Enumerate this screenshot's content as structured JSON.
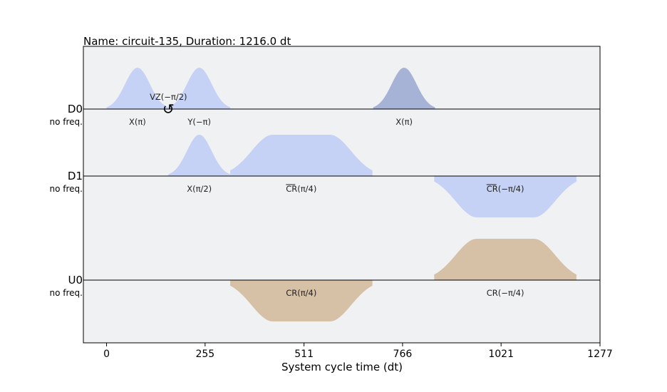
{
  "chart_data": {
    "type": "area",
    "title": "Name: circuit-135, Duration: 1216.0 dt",
    "xlabel": "System cycle time (dt)",
    "ylabel": "",
    "xlim": [
      -60,
      1277
    ],
    "xticks": [
      0,
      255,
      511,
      766,
      1021,
      1277
    ],
    "grid": false,
    "colors": {
      "drive": "#c6d2f5",
      "drive_dark": "#a6b2d6",
      "control": "#d6c0a6",
      "background": "#f0f1f3"
    },
    "channels": [
      {
        "name": "D0",
        "freq_label": "no freq.",
        "pulses": [
          {
            "label": "X(π)",
            "shape": "gaussian",
            "start": 0,
            "end": 160,
            "amp": 1.0,
            "color": "drive"
          },
          {
            "label": "Y(−π)",
            "shape": "gaussian",
            "start": 160,
            "end": 320,
            "amp": 1.0,
            "color": "drive"
          },
          {
            "label": "X(π)",
            "shape": "gaussian",
            "start": 690,
            "end": 850,
            "amp": 1.0,
            "color": "drive_dark"
          }
        ],
        "frame_changes": [
          {
            "label": "VZ(−π/2)",
            "t": 160,
            "symbol": "↺"
          }
        ]
      },
      {
        "name": "D1",
        "freq_label": "no freq.",
        "pulses": [
          {
            "label": "X(π/2)",
            "shape": "gaussian",
            "start": 160,
            "end": 320,
            "amp": 1.0,
            "color": "drive"
          },
          {
            "label": "CR(π/4)",
            "overline": "CR",
            "shape": "gaussian_square",
            "start": 320,
            "end": 688,
            "amp": 1.0,
            "color": "drive"
          },
          {
            "label": "CR(−π/4)",
            "overline": "CR",
            "shape": "gaussian_square",
            "start": 848,
            "end": 1216,
            "amp": -1.0,
            "color": "drive"
          }
        ]
      },
      {
        "name": "U0",
        "freq_label": "no freq.",
        "pulses": [
          {
            "label": "CR(π/4)",
            "shape": "gaussian_square",
            "start": 320,
            "end": 688,
            "amp": -1.0,
            "color": "control"
          },
          {
            "label": "CR(−π/4)",
            "shape": "gaussian_square",
            "start": 848,
            "end": 1216,
            "amp": 1.0,
            "color": "control"
          }
        ]
      }
    ]
  }
}
